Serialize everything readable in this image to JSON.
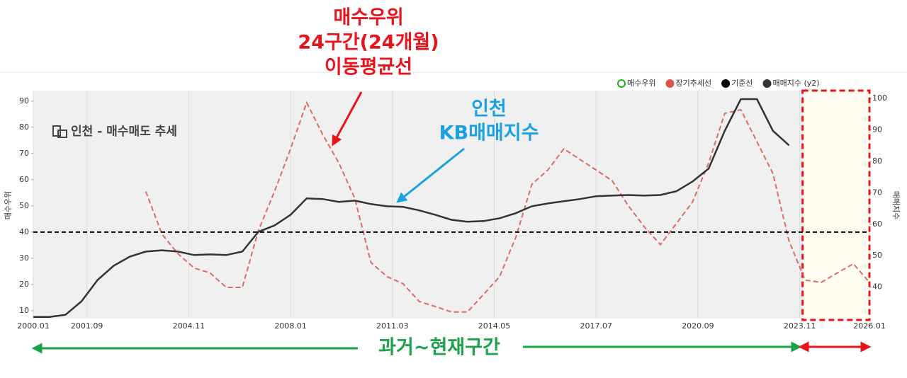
{
  "chart_data": {
    "type": "line",
    "title": "인천 - 매수매도 추세",
    "y_label": "매수우위",
    "y2_label": "매매지수",
    "x": [
      "2000.01",
      "2000.07",
      "2001.01",
      "2001.07",
      "2002.01",
      "2002.07",
      "2003.01",
      "2003.07",
      "2004.01",
      "2004.07",
      "2005.01",
      "2005.07",
      "2006.01",
      "2006.07",
      "2007.01",
      "2007.07",
      "2008.01",
      "2008.07",
      "2009.01",
      "2009.07",
      "2010.01",
      "2010.07",
      "2011.01",
      "2011.07",
      "2012.01",
      "2012.07",
      "2013.01",
      "2013.07",
      "2014.01",
      "2014.07",
      "2015.01",
      "2015.07",
      "2016.01",
      "2016.07",
      "2017.01",
      "2017.07",
      "2018.01",
      "2018.07",
      "2019.01",
      "2019.07",
      "2020.01",
      "2020.07",
      "2021.01",
      "2021.07",
      "2022.01",
      "2022.07",
      "2023.01",
      "2023.07",
      "2024.01",
      "2024.07",
      "2025.01",
      "2025.07",
      "2026.01"
    ],
    "series": [
      {
        "name": "매수우위",
        "color": "#22aa22",
        "marker": "hollow",
        "values": [
          null,
          null,
          null,
          null,
          null,
          null,
          null,
          null,
          null,
          null,
          null,
          null,
          null,
          null,
          null,
          null,
          null,
          null,
          null,
          null,
          null,
          null,
          null,
          null,
          null,
          null,
          null,
          null,
          null,
          null,
          null,
          null,
          null,
          null,
          null,
          null,
          null,
          null,
          null,
          null,
          null,
          null,
          null,
          null,
          null,
          null,
          null,
          null,
          null,
          null,
          null,
          null,
          null
        ]
      },
      {
        "name": "장기추세선",
        "color": "#d9534f",
        "dash": true,
        "values": [
          null,
          null,
          null,
          null,
          null,
          null,
          null,
          55.5,
          39.3,
          31.7,
          26.3,
          24.4,
          18.9,
          18.9,
          40.6,
          55.5,
          71.8,
          89.4,
          77.2,
          66.4,
          52.8,
          28.4,
          23.0,
          20.3,
          13.5,
          11.6,
          9.5,
          9.5,
          16.2,
          23.0,
          37.9,
          58.2,
          63.7,
          71.8,
          67.7,
          63.7,
          59.6,
          50.1,
          42.0,
          35.2,
          43.3,
          51.5,
          66.4,
          85.3,
          86.7,
          74.5,
          62.3,
          36.6,
          21.7,
          20.8,
          24.4,
          27.9,
          20.8
        ]
      },
      {
        "name": "기준선",
        "color": "#000000",
        "dash": true,
        "values": [
          40,
          40,
          40,
          40,
          40,
          40,
          40,
          40,
          40,
          40,
          40,
          40,
          40,
          40,
          40,
          40,
          40,
          40,
          40,
          40,
          40,
          40,
          40,
          40,
          40,
          40,
          40,
          40,
          40,
          40,
          40,
          40,
          40,
          40,
          40,
          40,
          40,
          40,
          40,
          40,
          40,
          40,
          40,
          40,
          40,
          40,
          40,
          40,
          40,
          40,
          40,
          40,
          40
        ]
      },
      {
        "name": "매매지수 (y2)",
        "color": "#333333",
        "axis": "y2",
        "values": [
          30.5,
          30.5,
          31.2,
          35.5,
          42.3,
          46.8,
          49.7,
          51.3,
          51.7,
          51.3,
          50.2,
          50.4,
          50.2,
          51.3,
          57.6,
          59.6,
          63.0,
          68.2,
          68.0,
          67.1,
          67.5,
          66.4,
          65.7,
          65.5,
          64.4,
          63.0,
          61.4,
          60.8,
          61.0,
          61.9,
          63.5,
          65.7,
          66.6,
          67.3,
          68.0,
          68.9,
          69.1,
          69.3,
          69.1,
          69.3,
          70.5,
          73.6,
          77.7,
          89.7,
          99.8,
          99.8,
          89.7,
          85.1,
          null,
          null,
          null,
          null,
          null
        ]
      }
    ],
    "xlim": [
      "2000.01",
      "2026.01"
    ],
    "xticks": [
      "2000.01",
      "2001.09",
      "2004.11",
      "2008.01",
      "2011.03",
      "2014.05",
      "2017.07",
      "2020.09",
      "2023.11",
      "2026.01"
    ],
    "ylim": [
      7,
      94
    ],
    "yticks": [
      10,
      20,
      30,
      40,
      50,
      60,
      70,
      80,
      90
    ],
    "y2lim": [
      30,
      102.5
    ],
    "y2ticks": [
      40,
      50,
      60,
      70,
      80,
      90,
      100
    ],
    "grid": true,
    "legend": "top-right",
    "highlight": {
      "from": "2023.11",
      "to": "2026.01"
    },
    "annotations": [
      [
        "매수우위",
        "24구간(24개월)",
        "이동평균선"
      ],
      [
        "인천",
        "KB매매지수"
      ],
      [
        "과거~현재구간"
      ]
    ]
  }
}
